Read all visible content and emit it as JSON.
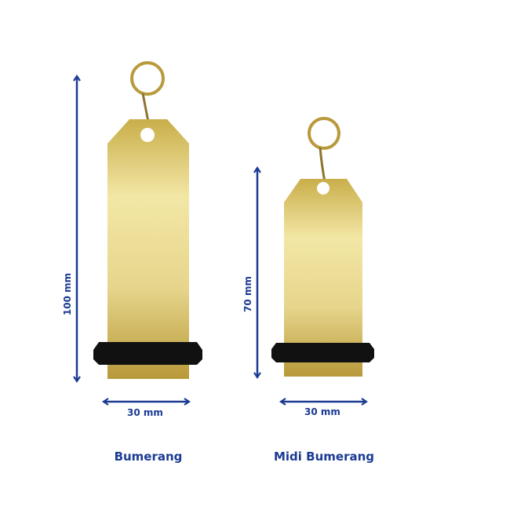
{
  "colors": {
    "annotation": "#1b3a93",
    "gold": "#d8c46a",
    "band": "#111111"
  },
  "products": [
    {
      "name": "Bumerang",
      "height_label": "100 mm",
      "width_label": "30 mm"
    },
    {
      "name": "Midi Bumerang",
      "height_label": "70 mm",
      "width_label": "30 mm"
    }
  ]
}
